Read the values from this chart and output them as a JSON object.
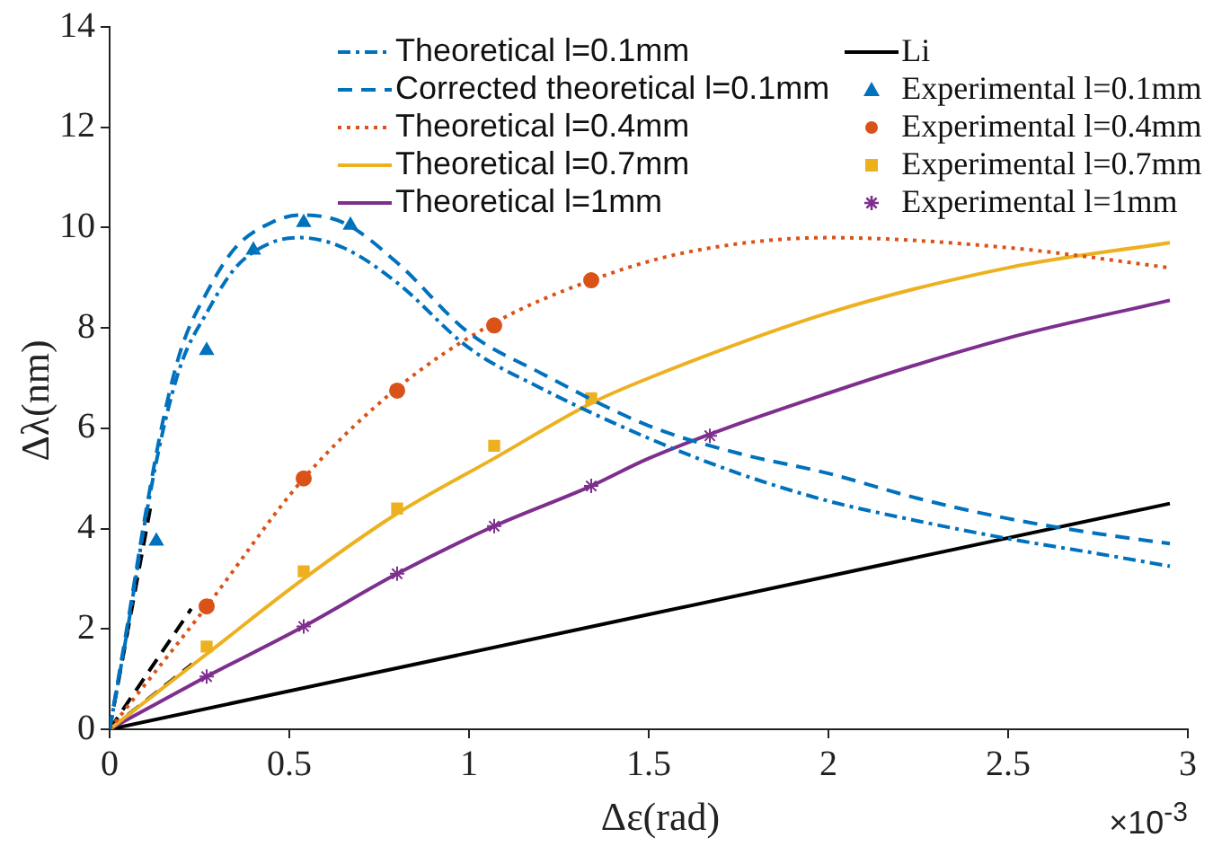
{
  "chart_data": {
    "type": "line",
    "xlabel": "Δε(rad)",
    "ylabel": "Δλ(nm)",
    "xlim": [
      0,
      3
    ],
    "ylim": [
      0,
      14
    ],
    "xticks": [
      0,
      0.5,
      1,
      1.5,
      2,
      2.5,
      3
    ],
    "yticks": [
      0,
      2,
      4,
      6,
      8,
      10,
      12,
      14
    ],
    "grid": false,
    "legend": "top",
    "annotations": [
      "×10$^{-3}$"
    ],
    "series": [
      {
        "name": "Theoretical l=0.1mm",
        "color": "#0072bd",
        "line_style": "dashdot",
        "marker": "none",
        "x": [
          0,
          0.05,
          0.1,
          0.15,
          0.2,
          0.27,
          0.35,
          0.45,
          0.53,
          0.65,
          0.8,
          1,
          1.2,
          1.5,
          1.75,
          2,
          2.25,
          2.5,
          2.75,
          2.95
        ],
        "values": [
          0,
          2,
          4.2,
          6,
          7.3,
          8.3,
          9.2,
          9.7,
          9.8,
          9.6,
          8.9,
          7.6,
          6.8,
          5.8,
          5.1,
          4.55,
          4.15,
          3.8,
          3.5,
          3.25
        ]
      },
      {
        "name": "Corrected theoretical l=0.1mm",
        "color": "#0072bd",
        "line_style": "dashed",
        "marker": "none",
        "x": [
          0,
          0.05,
          0.1,
          0.15,
          0.2,
          0.27,
          0.35,
          0.45,
          0.53,
          0.65,
          0.8,
          1,
          1.2,
          1.5,
          1.75,
          2,
          2.25,
          2.5,
          2.75,
          2.95
        ],
        "values": [
          0,
          2.1,
          4.3,
          6.2,
          7.6,
          8.7,
          9.6,
          10.1,
          10.25,
          10.1,
          9.3,
          7.9,
          7.1,
          6.05,
          5.5,
          5.1,
          4.6,
          4.2,
          3.9,
          3.7
        ]
      },
      {
        "name": "Theoretical l=0.4mm",
        "color": "#d95319",
        "line_style": "dotted",
        "marker": "none",
        "x": [
          0,
          0.27,
          0.54,
          0.8,
          1.07,
          1.34,
          1.6,
          2,
          2.5,
          2.95
        ],
        "values": [
          0,
          2.45,
          5,
          6.8,
          8.1,
          8.95,
          9.5,
          9.8,
          9.6,
          9.2
        ]
      },
      {
        "name": "Theoretical l=0.7mm",
        "color": "#edb120",
        "line_style": "solid",
        "marker": "none",
        "x": [
          0,
          0.27,
          0.54,
          0.8,
          1.07,
          1.34,
          1.5,
          2,
          2.5,
          2.95
        ],
        "values": [
          0,
          1.5,
          3,
          4.3,
          5.4,
          6.5,
          7,
          8.3,
          9.2,
          9.7
        ]
      },
      {
        "name": "Theoretical l=1mm",
        "color": "#7e2f8e",
        "line_style": "solid",
        "marker": "none",
        "x": [
          0,
          0.27,
          0.54,
          0.8,
          1.07,
          1.34,
          1.5,
          2,
          2.5,
          2.95
        ],
        "values": [
          0,
          1.05,
          2.05,
          3.1,
          4.05,
          4.85,
          5.4,
          6.7,
          7.8,
          8.55
        ]
      },
      {
        "name": "Li",
        "color": "#000000",
        "line_style": "solid",
        "marker": "none",
        "x": [
          0,
          2.95
        ],
        "values": [
          0,
          4.5
        ]
      },
      {
        "name": "Experimental l=0.1mm",
        "type": "scatter",
        "color": "#0072bd",
        "marker": "triangle",
        "x": [
          0.13,
          0.27,
          0.4,
          0.54,
          0.67
        ],
        "values": [
          3.75,
          7.55,
          9.55,
          10.1,
          10.05
        ]
      },
      {
        "name": "Experimental l=0.4mm",
        "type": "scatter",
        "color": "#d95319",
        "marker": "circle",
        "x": [
          0.27,
          0.54,
          0.8,
          1.07,
          1.34
        ],
        "values": [
          2.45,
          5,
          6.75,
          8.05,
          8.95
        ]
      },
      {
        "name": "Experimental l=0.7mm",
        "type": "scatter",
        "color": "#edb120",
        "marker": "square",
        "x": [
          0.27,
          0.54,
          0.8,
          1.07,
          1.34
        ],
        "values": [
          1.65,
          3.15,
          4.4,
          5.65,
          6.6
        ]
      },
      {
        "name": "Experimental l=1mm",
        "type": "scatter",
        "color": "#7e2f8e",
        "marker": "cross",
        "x": [
          0.27,
          0.54,
          0.8,
          1.07,
          1.34,
          1.67
        ],
        "values": [
          1.05,
          2.05,
          3.1,
          4.05,
          4.85,
          5.85
        ]
      },
      {
        "color": "#000000",
        "line_style": "dashed",
        "marker": "none",
        "x": [
          0,
          0.113
        ],
        "values": [
          0,
          4.4
        ]
      },
      {
        "color": "#000000",
        "line_style": "dashed",
        "marker": "none",
        "x": [
          0,
          0.227
        ],
        "values": [
          0,
          2.4
        ]
      },
      {
        "color": "#000000",
        "line_style": "dashed",
        "marker": "none",
        "x": [
          0,
          0.23
        ],
        "values": [
          0,
          1.3
        ]
      }
    ]
  }
}
